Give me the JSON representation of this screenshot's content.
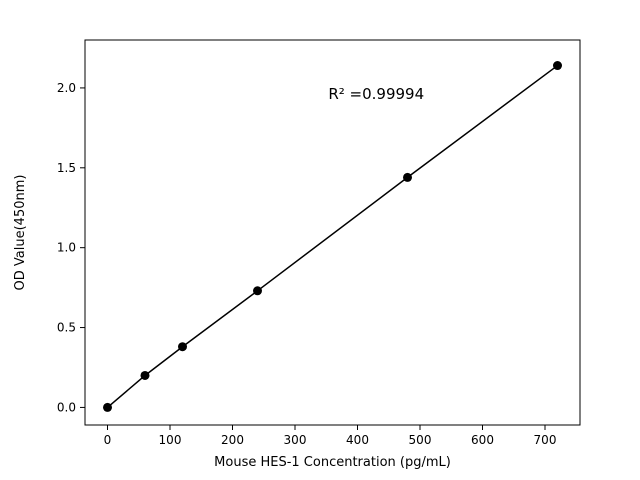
{
  "chart_data": {
    "type": "scatter",
    "x": [
      0,
      60,
      120,
      240,
      480,
      720
    ],
    "y": [
      0.0,
      0.2,
      0.38,
      0.73,
      1.44,
      2.14
    ],
    "title": "",
    "xlabel": "Mouse HES-1 Concentration (pg/mL)",
    "ylabel": "OD Value(450nm)",
    "annotation": {
      "text": "R² =0.99994",
      "x": 430,
      "y": 1.93
    },
    "xlim": [
      -36,
      756
    ],
    "ylim": [
      -0.11,
      2.3
    ],
    "xticks": [
      0,
      100,
      200,
      300,
      400,
      500,
      600,
      700
    ],
    "yticks": [
      0.0,
      0.5,
      1.0,
      1.5,
      2.0
    ],
    "grid": false,
    "legend": null,
    "line": true,
    "line_color": "#000000",
    "marker_color": "#000000",
    "marker_radius": 4.5,
    "background": "#ffffff",
    "axis_color": "#000000"
  }
}
